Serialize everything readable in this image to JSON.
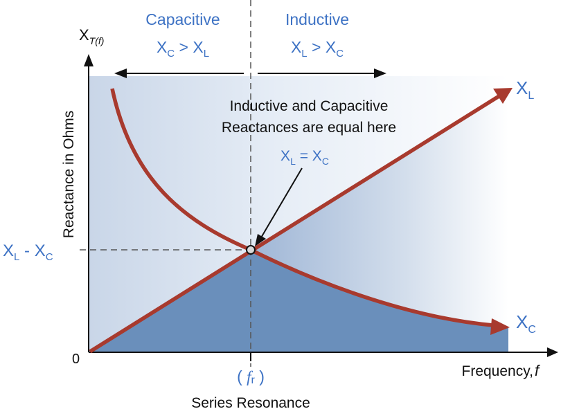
{
  "regions": {
    "capacitive": {
      "title": "Capacitive",
      "cond_a": "X",
      "cond_a_sub": "C",
      "cond_op": " > X",
      "cond_b_sub": "L"
    },
    "inductive": {
      "title": "Inductive",
      "cond_a": "X",
      "cond_a_sub": "L",
      "cond_op": " > X",
      "cond_b_sub": "C"
    }
  },
  "y_axis": {
    "symbol": "X",
    "symbol_sub": "T(f)",
    "label": "Reactance in Ohms",
    "origin": "0"
  },
  "x_axis": {
    "label": "Frequency, ",
    "label_f": "f"
  },
  "curves": {
    "xl": {
      "symbol": "X",
      "sub": "L"
    },
    "xc": {
      "symbol": "X",
      "sub": "C"
    }
  },
  "annotation": {
    "line1": "Inductive and Capacitive",
    "line2": "Reactances are equal here",
    "eq_a": "X",
    "eq_a_sub": "L",
    "eq_mid": " = X",
    "eq_b_sub": "C"
  },
  "level_label": {
    "a": "X",
    "a_sub": "L",
    "mid": " - X",
    "b_sub": "C"
  },
  "resonance": {
    "open": "( ",
    "f": "f",
    "sub": "r",
    "close": " )",
    "label": "Series Resonance"
  },
  "colors": {
    "curve": "#a83a2e",
    "fill": "#6a8fbb",
    "text_blue": "#3d72c4",
    "axis": "#111111"
  }
}
